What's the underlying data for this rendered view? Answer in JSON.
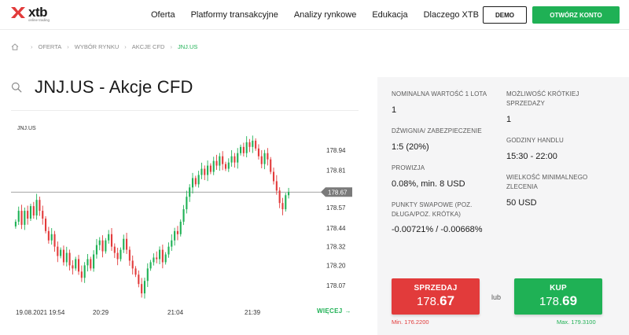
{
  "brand": {
    "name": "xtb",
    "tagline": "online trading"
  },
  "nav": {
    "items": [
      "Oferta",
      "Platformy transakcyjne",
      "Analizy rynkowe",
      "Edukacja",
      "Dlaczego XTB"
    ],
    "demo_label": "DEMO",
    "open_account_label": "OTWÓRZ KONTO"
  },
  "breadcrumb": {
    "items": [
      "OFERTA",
      "WYBÓR RYNKU",
      "AKCJE CFD"
    ],
    "current": "JNJ.US"
  },
  "page_title": "JNJ.US - Akcje CFD",
  "chart": {
    "symbol": "JNJ.US",
    "current_price_label": "178.67",
    "more_label": "WIĘCEJ",
    "more_arrow": "→"
  },
  "chart_data": {
    "type": "candlestick",
    "y_ticks": [
      178.07,
      178.2,
      178.32,
      178.44,
      178.57,
      178.69,
      178.81,
      178.94
    ],
    "y_tick_labels": [
      "178.07",
      "178.20",
      "178.32",
      "178.44",
      "178.57",
      "178.69",
      "178.81",
      "178.94"
    ],
    "ylim": [
      177.98,
      179.05
    ],
    "x_tick_labels": [
      "19.08.2021 19:54",
      "20:29",
      "21:04",
      "21:39"
    ],
    "current_price": 178.67,
    "grid": false,
    "colors": {
      "up": "#1fb155",
      "down": "#e23b3b",
      "price_line": "#999999",
      "price_tag": "#7a7a7a"
    },
    "closes": [
      178.48,
      178.55,
      178.46,
      178.55,
      178.5,
      178.58,
      178.52,
      178.62,
      178.55,
      178.5,
      178.42,
      178.36,
      178.4,
      178.32,
      178.26,
      178.3,
      178.22,
      178.28,
      178.2,
      178.18,
      178.24,
      178.16,
      178.12,
      178.2,
      178.24,
      178.18,
      178.27,
      178.33,
      178.36,
      178.29,
      178.36,
      178.4,
      178.32,
      178.28,
      178.24,
      178.3,
      178.37,
      178.3,
      178.23,
      178.18,
      178.14,
      178.08,
      178.02,
      178.1,
      178.18,
      178.22,
      178.25,
      178.24,
      178.3,
      178.22,
      178.27,
      178.32,
      178.36,
      178.42,
      178.4,
      178.48,
      178.56,
      178.64,
      178.7,
      178.76,
      178.72,
      178.78,
      178.82,
      178.78,
      178.84,
      178.8,
      178.87,
      178.84,
      178.9,
      178.85,
      178.82,
      178.86,
      178.9,
      178.86,
      178.92,
      178.96,
      178.92,
      178.99,
      178.96,
      179.0,
      178.95,
      178.9,
      178.85,
      178.92,
      178.88,
      178.8,
      178.74,
      178.68,
      178.6,
      178.56,
      178.65,
      178.67
    ]
  },
  "info": {
    "lot_label": "NOMINALNA WARTOŚĆ 1 LOTA",
    "lot_value": "1",
    "leverage_label": "DŹWIGNIA/ ZABEZPIECZENIE",
    "leverage_value": "1:5 (20%)",
    "commission_label": "PROWIZJA",
    "commission_value": "0.08%, min. 8 USD",
    "swap_label": "PUNKTY SWAPOWE (POZ. DŁUGA/POZ. KRÓTKA)",
    "swap_value": "-0.00721% / -0.00668%",
    "short_label": "MOŻLIWOŚĆ KRÓTKIEJ SPRZEDAŻY",
    "short_value": "1",
    "hours_label": "GODZINY HANDLU",
    "hours_value": "15:30 - 22:00",
    "min_size_label": "WIELKOŚĆ MINIMALNEGO ZLECENIA",
    "min_size_value": "50 USD"
  },
  "trade": {
    "sell_label": "SPRZEDAJ",
    "sell_price_prefix": "178.",
    "sell_price_suffix": "67",
    "buy_label": "KUP",
    "buy_price_prefix": "178.",
    "buy_price_suffix": "69",
    "or_label": "lub",
    "min_label": "Min. 176.2200",
    "max_label": "Max. 179.3100"
  }
}
